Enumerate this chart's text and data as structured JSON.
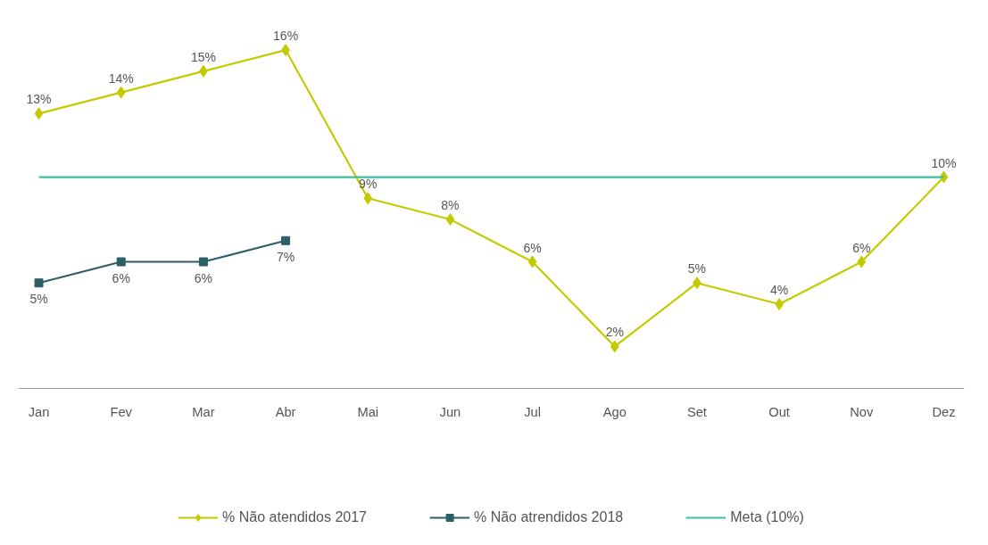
{
  "chart_data": {
    "type": "line",
    "categories": [
      "Jan",
      "Fev",
      "Mar",
      "Abr",
      "Mai",
      "Jun",
      "Jul",
      "Ago",
      "Set",
      "Out",
      "Nov",
      "Dez"
    ],
    "series": [
      {
        "name": "% Não atendidos 2017",
        "color": "#c3cb00",
        "marker": "diamond",
        "values": [
          13,
          14,
          15,
          16,
          9,
          8,
          6,
          2,
          5,
          4,
          6,
          10
        ],
        "value_labels": [
          "13%",
          "14%",
          "15%",
          "16%",
          "9%",
          "8%",
          "6%",
          "2%",
          "5%",
          "4%",
          "6%",
          "10%"
        ]
      },
      {
        "name": "% Não atrendidos 2018",
        "color": "#2d5f66",
        "marker": "square",
        "values": [
          5,
          6,
          6,
          7,
          null,
          null,
          null,
          null,
          null,
          null,
          null,
          null
        ],
        "value_labels": [
          "5%",
          "6%",
          "6%",
          "7%",
          null,
          null,
          null,
          null,
          null,
          null,
          null,
          null
        ]
      },
      {
        "name": "Meta (10%)",
        "color": "#3dbfa8",
        "marker": "none",
        "values": [
          10,
          10,
          10,
          10,
          10,
          10,
          10,
          10,
          10,
          10,
          10,
          10
        ]
      }
    ],
    "legend": "bottom",
    "grid": false,
    "line_style": "solid"
  }
}
